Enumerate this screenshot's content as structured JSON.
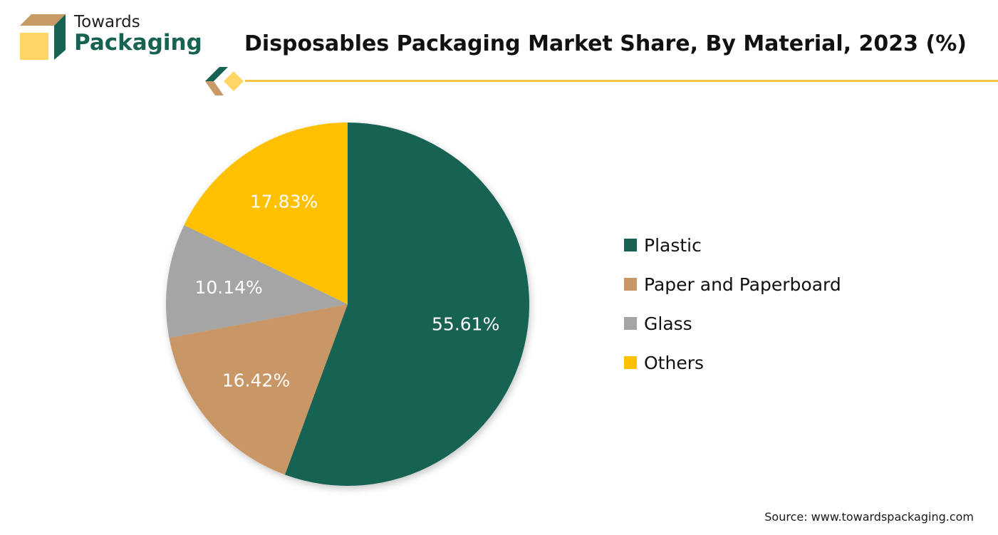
{
  "brand": {
    "line1": "Towards",
    "line2": "Packaging",
    "colors": {
      "green": "#186253",
      "tan": "#C99A66",
      "yellow": "#FFD666",
      "accent": "#F4C542"
    }
  },
  "chart_data": {
    "type": "pie",
    "title": "Disposables Packaging Market Share, By Material, 2023 (%)",
    "categories": [
      "Plastic",
      "Paper and Paperboard",
      "Glass",
      "Others"
    ],
    "values": [
      55.61,
      16.42,
      10.14,
      17.83
    ],
    "labels": [
      "55.61%",
      "16.42%",
      "10.14%",
      "17.83%"
    ],
    "colors": [
      "#186253",
      "#C99766",
      "#A5A5A5",
      "#FFC000"
    ],
    "legend_position": "right",
    "start": "top",
    "direction": "clockwise"
  },
  "source": "Source: www.towardspackaging.com"
}
